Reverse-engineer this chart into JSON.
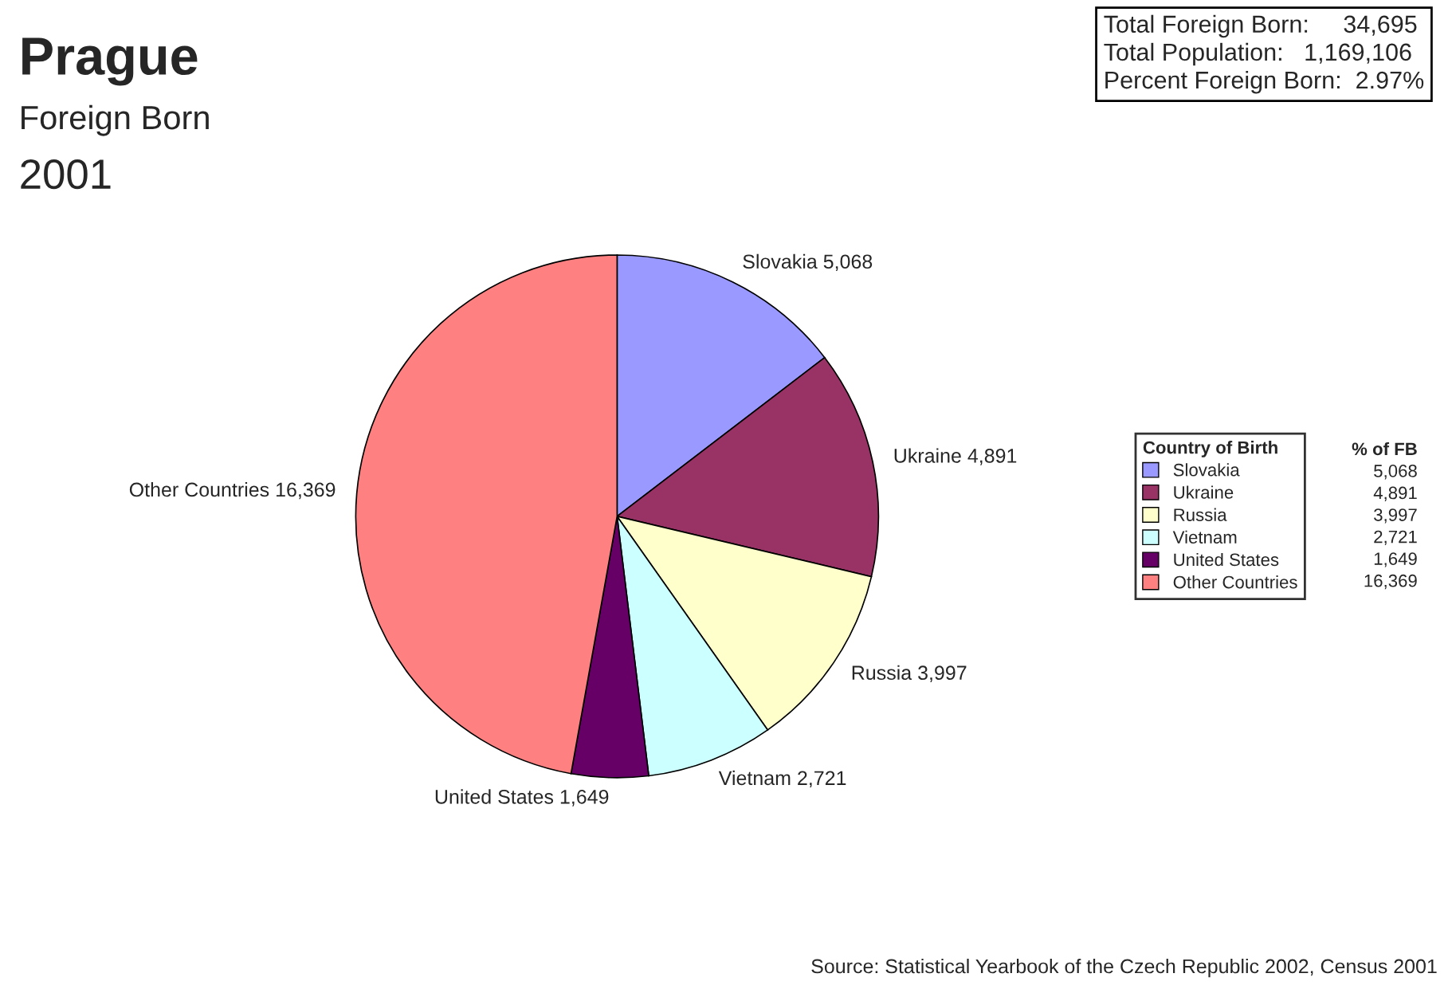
{
  "chart_data": {
    "type": "pie",
    "title": "Prague",
    "subtitle": "Foreign Born",
    "categories": [
      "Slovakia",
      "Ukraine",
      "Russia",
      "Vietnam",
      "United States",
      "Other Countries"
    ],
    "values": [
      5068,
      4891,
      3997,
      2721,
      1649,
      16369
    ],
    "value_labels": [
      "5,068",
      "4,891",
      "3,997",
      "2,721",
      "1,649",
      "16,369"
    ],
    "colors": [
      "#9999ff",
      "#993366",
      "#ffffcc",
      "#ccffff",
      "#660066",
      "#ff8080"
    ],
    "legend": "right",
    "legend_title": "Country of Birth",
    "annotations": [
      "2001",
      "Total Foreign Born:     34,695",
      "Total Population:   1,169,106",
      "Percent Foreign Born:  2.97%",
      "Source: Statistical Yearbook of the Czech Republic 2002, Census 2001",
      "% of FB"
    ]
  }
}
